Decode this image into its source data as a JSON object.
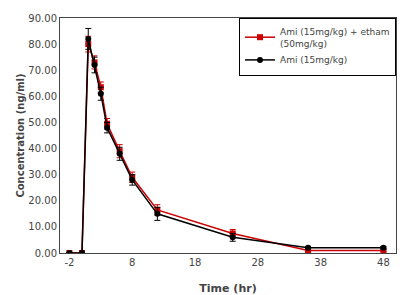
{
  "chart_data": {
    "type": "line",
    "xlabel": "Time (hr)",
    "ylabel": "Concentration (ng/ml)",
    "x": [
      -2,
      0,
      1,
      2,
      3,
      4,
      6,
      8,
      12,
      24,
      36,
      48
    ],
    "series": [
      {
        "name": "Ami (15mg/kg) + etham\n(50mg/kg)",
        "color": "#cc0000",
        "marker": "square",
        "line_style": "solid",
        "values": [
          0.0,
          0.0,
          80.0,
          73.0,
          63.5,
          49.5,
          39.0,
          29.0,
          16.5,
          7.5,
          1.0,
          1.0
        ],
        "errors": [
          0.0,
          0.0,
          3.0,
          2.5,
          2.0,
          2.0,
          2.5,
          2.0,
          2.0,
          1.5,
          0.5,
          0.5
        ]
      },
      {
        "name": "Ami (15mg/kg)",
        "color": "#000000",
        "marker": "circle",
        "line_style": "solid",
        "values": [
          0.0,
          0.0,
          82.0,
          72.0,
          61.0,
          48.0,
          38.0,
          28.0,
          15.0,
          6.0,
          2.0,
          2.0
        ],
        "errors": [
          0.0,
          0.0,
          4.0,
          3.0,
          2.5,
          2.0,
          2.5,
          2.0,
          2.5,
          1.5,
          0.5,
          0.5
        ]
      }
    ],
    "xlim": [
      -3.5,
      50
    ],
    "xticks": [
      -2,
      8,
      18,
      28,
      38,
      48
    ],
    "ylim": [
      0,
      90
    ],
    "yticks": [
      {
        "value": 0,
        "label": "0.00"
      },
      {
        "value": 10,
        "label": "10.00"
      },
      {
        "value": 20,
        "label": "20.00"
      },
      {
        "value": 30,
        "label": "30.00"
      },
      {
        "value": 40,
        "label": "40.00"
      },
      {
        "value": 50,
        "label": "50.00"
      },
      {
        "value": 60,
        "label": "60.00"
      },
      {
        "value": 70,
        "label": "70.00"
      },
      {
        "value": 80,
        "label": "80.00"
      },
      {
        "value": 90,
        "label": "90.00"
      }
    ],
    "grid": false,
    "legend": "upper right"
  }
}
